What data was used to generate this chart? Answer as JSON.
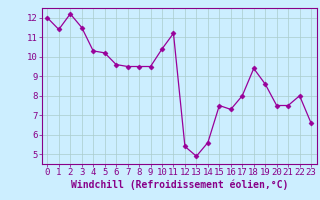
{
  "x": [
    0,
    1,
    2,
    3,
    4,
    5,
    6,
    7,
    8,
    9,
    10,
    11,
    12,
    13,
    14,
    15,
    16,
    17,
    18,
    19,
    20,
    21,
    22,
    23
  ],
  "y": [
    12.0,
    11.4,
    12.2,
    11.5,
    10.3,
    10.2,
    9.6,
    9.5,
    9.5,
    9.5,
    10.4,
    11.2,
    5.4,
    4.9,
    5.6,
    7.5,
    7.3,
    8.0,
    9.4,
    8.6,
    7.5,
    7.5,
    8.0,
    6.6
  ],
  "line_color": "#990099",
  "marker": "D",
  "marker_size": 2.5,
  "bg_color": "#cceeff",
  "grid_color": "#aacccc",
  "xlabel": "Windchill (Refroidissement éolien,°C)",
  "xlim": [
    -0.5,
    23.5
  ],
  "ylim": [
    4.5,
    12.5
  ],
  "yticks": [
    5,
    6,
    7,
    8,
    9,
    10,
    11,
    12
  ],
  "xticks": [
    0,
    1,
    2,
    3,
    4,
    5,
    6,
    7,
    8,
    9,
    10,
    11,
    12,
    13,
    14,
    15,
    16,
    17,
    18,
    19,
    20,
    21,
    22,
    23
  ],
  "label_color": "#880088",
  "tick_label_fontsize": 6.5,
  "xlabel_fontsize": 7.0,
  "spine_color": "#880088"
}
